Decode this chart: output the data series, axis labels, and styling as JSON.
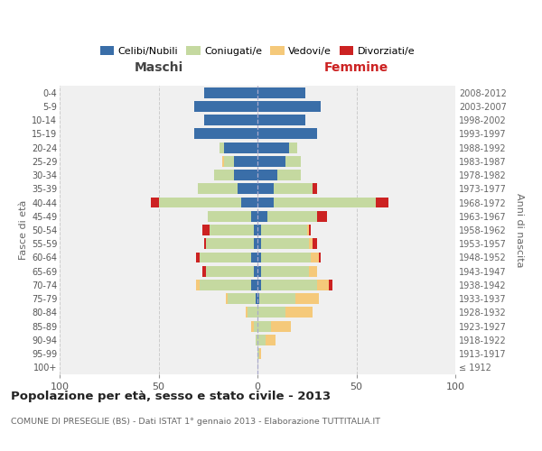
{
  "age_groups": [
    "100+",
    "95-99",
    "90-94",
    "85-89",
    "80-84",
    "75-79",
    "70-74",
    "65-69",
    "60-64",
    "55-59",
    "50-54",
    "45-49",
    "40-44",
    "35-39",
    "30-34",
    "25-29",
    "20-24",
    "15-19",
    "10-14",
    "5-9",
    "0-4"
  ],
  "birth_years": [
    "≤ 1912",
    "1913-1917",
    "1918-1922",
    "1923-1927",
    "1928-1932",
    "1933-1937",
    "1938-1942",
    "1943-1947",
    "1948-1952",
    "1953-1957",
    "1958-1962",
    "1963-1967",
    "1968-1972",
    "1973-1977",
    "1978-1982",
    "1983-1987",
    "1988-1992",
    "1993-1997",
    "1998-2002",
    "2003-2007",
    "2008-2012"
  ],
  "colors": {
    "celibi": "#3a6ea8",
    "coniugati": "#c5d9a0",
    "vedovi": "#f5c97a",
    "divorziati": "#cc2222"
  },
  "maschi": {
    "celibi": [
      0,
      0,
      0,
      0,
      0,
      1,
      3,
      2,
      3,
      2,
      2,
      3,
      8,
      10,
      12,
      12,
      17,
      32,
      27,
      32,
      27
    ],
    "coniugati": [
      0,
      0,
      1,
      2,
      5,
      14,
      26,
      24,
      26,
      24,
      22,
      22,
      42,
      20,
      10,
      5,
      2,
      0,
      0,
      0,
      0
    ],
    "vedovi": [
      0,
      0,
      0,
      1,
      1,
      1,
      2,
      0,
      0,
      0,
      0,
      0,
      0,
      0,
      0,
      1,
      0,
      0,
      0,
      0,
      0
    ],
    "divorziati": [
      0,
      0,
      0,
      0,
      0,
      0,
      0,
      2,
      2,
      1,
      4,
      0,
      4,
      0,
      0,
      0,
      0,
      0,
      0,
      0,
      0
    ]
  },
  "femmine": {
    "celibi": [
      0,
      0,
      0,
      0,
      0,
      1,
      2,
      2,
      2,
      2,
      2,
      5,
      8,
      8,
      10,
      14,
      16,
      30,
      24,
      32,
      24
    ],
    "coniugati": [
      0,
      1,
      4,
      7,
      14,
      18,
      28,
      24,
      25,
      24,
      23,
      25,
      52,
      20,
      12,
      8,
      4,
      0,
      0,
      0,
      0
    ],
    "vedovi": [
      0,
      1,
      5,
      10,
      14,
      12,
      6,
      4,
      4,
      2,
      1,
      0,
      0,
      0,
      0,
      0,
      0,
      0,
      0,
      0,
      0
    ],
    "divorziati": [
      0,
      0,
      0,
      0,
      0,
      0,
      2,
      0,
      1,
      2,
      1,
      5,
      6,
      2,
      0,
      0,
      0,
      0,
      0,
      0,
      0
    ]
  },
  "xlim": 100,
  "title": "Popolazione per età, sesso e stato civile - 2013",
  "subtitle": "COMUNE DI PRESEGLIE (BS) - Dati ISTAT 1° gennaio 2013 - Elaborazione TUTTITALIA.IT",
  "ylabel_left": "Fasce di età",
  "ylabel_right": "Anni di nascita",
  "xlabel_left": "Maschi",
  "xlabel_right": "Femmine",
  "bg_color": "#f0f0f0",
  "grid_color": "#cccccc"
}
